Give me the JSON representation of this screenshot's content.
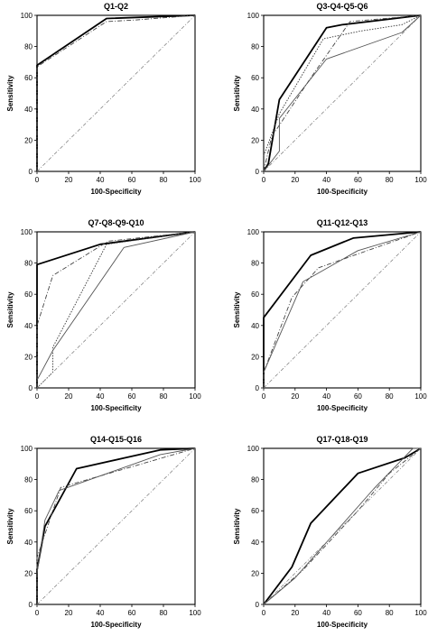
{
  "chart_data": [
    {
      "type": "line",
      "title": "Q1-Q2",
      "xlabel": "100-Specificity",
      "ylabel": "Sensitivity",
      "xlim": [
        0,
        100
      ],
      "ylim": [
        0,
        100
      ],
      "xticks": [
        "0",
        "20",
        "40",
        "60",
        "80",
        "100"
      ],
      "yticks": [
        "0",
        "20",
        "40",
        "60",
        "80",
        "100"
      ],
      "grid": false,
      "series": [
        {
          "style": "solid-bold",
          "x": [
            0,
            0,
            44,
            100
          ],
          "y": [
            0,
            68,
            98,
            100
          ]
        },
        {
          "style": "dash-dot",
          "x": [
            0,
            0,
            44,
            62,
            100
          ],
          "y": [
            0,
            67,
            96,
            97,
            100
          ]
        },
        {
          "style": "diagonal",
          "x": [
            0,
            100
          ],
          "y": [
            0,
            100
          ]
        }
      ]
    },
    {
      "type": "line",
      "title": "Q3-Q4-Q5-Q6",
      "xlabel": "100-Specificity",
      "ylabel": "Sensitivity",
      "xlim": [
        0,
        100
      ],
      "ylim": [
        0,
        100
      ],
      "xticks": [
        "0",
        "20",
        "40",
        "60",
        "80",
        "100"
      ],
      "yticks": [
        "0",
        "20",
        "40",
        "60",
        "80",
        "100"
      ],
      "grid": false,
      "series": [
        {
          "style": "solid-bold",
          "x": [
            0,
            3,
            10,
            40,
            50,
            100
          ],
          "y": [
            0,
            5,
            46,
            92,
            94,
            100
          ]
        },
        {
          "style": "solid-thin",
          "x": [
            0,
            10,
            10,
            40,
            88,
            100
          ],
          "y": [
            0,
            13,
            34,
            72,
            89,
            100
          ]
        },
        {
          "style": "dash-dot",
          "x": [
            0,
            5,
            30,
            55,
            100
          ],
          "y": [
            0,
            22,
            60,
            96,
            100
          ]
        },
        {
          "style": "dotted",
          "x": [
            0,
            10,
            38,
            62,
            88,
            100
          ],
          "y": [
            10,
            37,
            85,
            90,
            94,
            100
          ]
        },
        {
          "style": "diagonal",
          "x": [
            0,
            100
          ],
          "y": [
            0,
            100
          ]
        }
      ]
    },
    {
      "type": "line",
      "title": "Q7-Q8-Q9-Q10",
      "xlabel": "100-Specificity",
      "ylabel": "Sensitivity",
      "xlim": [
        0,
        100
      ],
      "ylim": [
        0,
        100
      ],
      "xticks": [
        "0",
        "20",
        "40",
        "60",
        "80",
        "100"
      ],
      "yticks": [
        "0",
        "20",
        "40",
        "60",
        "80",
        "100"
      ],
      "grid": false,
      "series": [
        {
          "style": "solid-bold",
          "x": [
            0,
            0,
            40,
            100
          ],
          "y": [
            0,
            79,
            92,
            100
          ]
        },
        {
          "style": "dash-dot",
          "x": [
            0,
            0,
            10,
            45,
            100
          ],
          "y": [
            0,
            40,
            72,
            94,
            100
          ]
        },
        {
          "style": "dotted",
          "x": [
            0,
            10,
            10,
            44,
            100
          ],
          "y": [
            0,
            10,
            26,
            92,
            100
          ]
        },
        {
          "style": "solid-thin",
          "x": [
            0,
            10,
            55,
            100
          ],
          "y": [
            5,
            24,
            90,
            100
          ]
        },
        {
          "style": "diagonal",
          "x": [
            0,
            100
          ],
          "y": [
            0,
            100
          ]
        }
      ]
    },
    {
      "type": "line",
      "title": "Q11-Q12-Q13",
      "xlabel": "100-Specificity",
      "ylabel": "Sensitivity",
      "xlim": [
        0,
        100
      ],
      "ylim": [
        0,
        100
      ],
      "xticks": [
        "0",
        "20",
        "40",
        "60",
        "80",
        "100"
      ],
      "yticks": [
        "0",
        "20",
        "40",
        "60",
        "80",
        "100"
      ],
      "grid": false,
      "series": [
        {
          "style": "solid-bold",
          "x": [
            0,
            0,
            30,
            57,
            100
          ],
          "y": [
            0,
            45,
            85,
            96,
            100
          ]
        },
        {
          "style": "dash-dot",
          "x": [
            0,
            0,
            18,
            35,
            100
          ],
          "y": [
            0,
            10,
            58,
            77,
            100
          ]
        },
        {
          "style": "solid-thin",
          "x": [
            0,
            25,
            60,
            100
          ],
          "y": [
            10,
            68,
            88,
            100
          ]
        },
        {
          "style": "diagonal",
          "x": [
            0,
            100
          ],
          "y": [
            0,
            100
          ]
        }
      ]
    },
    {
      "type": "line",
      "title": "Q14-Q15-Q16",
      "xlabel": "100-Specificity",
      "ylabel": "Sensitivity",
      "xlim": [
        0,
        100
      ],
      "ylim": [
        0,
        100
      ],
      "xticks": [
        "0",
        "20",
        "40",
        "60",
        "80",
        "100"
      ],
      "yticks": [
        "0",
        "20",
        "40",
        "60",
        "80",
        "100"
      ],
      "grid": false,
      "series": [
        {
          "style": "solid-bold",
          "x": [
            0,
            0,
            5,
            25,
            78,
            100
          ],
          "y": [
            0,
            22,
            50,
            87,
            99,
            100
          ]
        },
        {
          "style": "dash-dot",
          "x": [
            0,
            0,
            15,
            100
          ],
          "y": [
            0,
            30,
            75,
            100
          ]
        },
        {
          "style": "solid-thin",
          "x": [
            0,
            5,
            14,
            78,
            100
          ],
          "y": [
            20,
            54,
            73,
            96,
            100
          ]
        },
        {
          "style": "diagonal",
          "x": [
            0,
            100
          ],
          "y": [
            0,
            100
          ]
        }
      ]
    },
    {
      "type": "line",
      "title": "Q17-Q18-Q19",
      "xlabel": "100-Specificity",
      "ylabel": "Sensitivity",
      "xlim": [
        0,
        100
      ],
      "ylim": [
        0,
        100
      ],
      "xticks": [
        "0",
        "20",
        "40",
        "60",
        "80",
        "100"
      ],
      "yticks": [
        "0",
        "20",
        "40",
        "60",
        "80",
        "100"
      ],
      "grid": false,
      "series": [
        {
          "style": "solid-bold",
          "x": [
            0,
            18,
            30,
            60,
            90,
            100
          ],
          "y": [
            0,
            24,
            52,
            84,
            94,
            100
          ]
        },
        {
          "style": "dash-dot",
          "x": [
            0,
            25,
            60,
            80,
            100
          ],
          "y": [
            0,
            22,
            60,
            84,
            100
          ]
        },
        {
          "style": "solid-thin",
          "x": [
            0,
            20,
            70,
            95,
            100
          ],
          "y": [
            0,
            17,
            74,
            100,
            100
          ]
        },
        {
          "style": "diagonal",
          "x": [
            0,
            100
          ],
          "y": [
            0,
            100
          ]
        }
      ]
    }
  ]
}
